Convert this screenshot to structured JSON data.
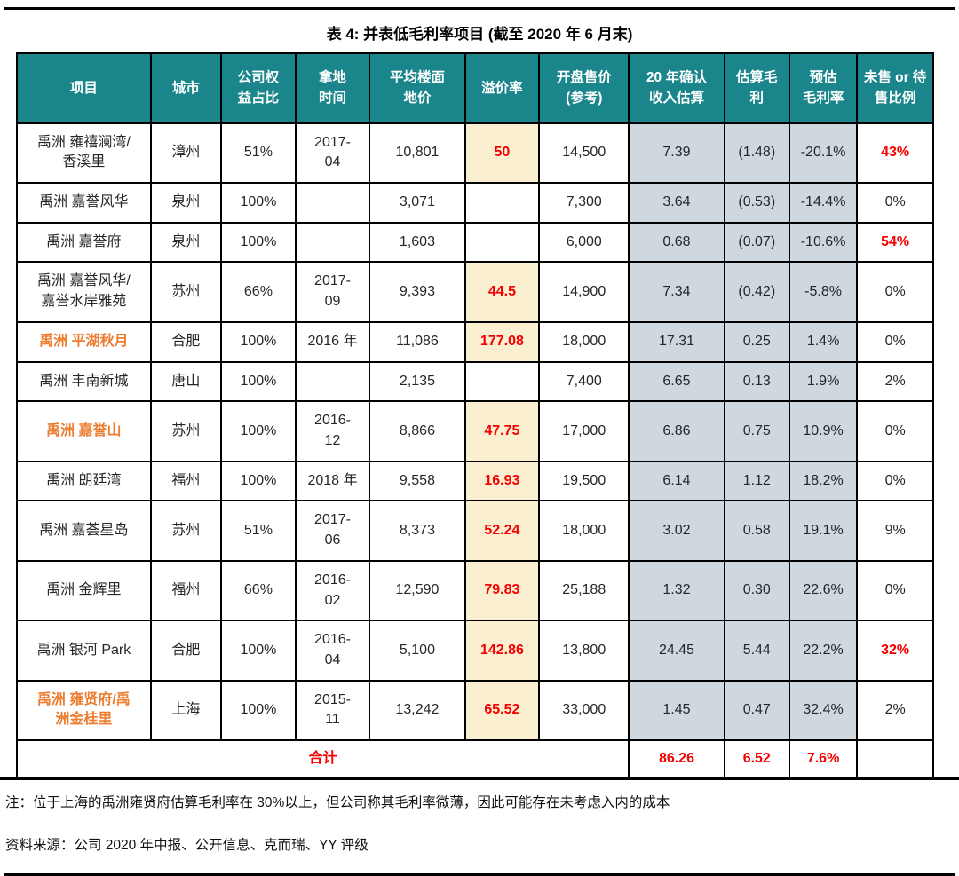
{
  "page": {
    "title": "表 4: 并表低毛利率项目 (截至 2020 年 6 月末)",
    "note": "注：位于上海的禹洲雍贤府估算毛利率在 30%以上，但公司称其毛利率微薄，因此可能存在未考虑入内的成本",
    "source": "资料来源：公司 2020 年中报、公开信息、克而瑞、YY 评级"
  },
  "colors": {
    "header_bg": "#1A868C",
    "header_text": "#FFFFFF",
    "premium_col_bg": "#FBEFD2",
    "estimate_cols_bg": "#CFD7DF",
    "highlight_red": "#F40000",
    "highlight_orange": "#ED7D31",
    "border": "#000000"
  },
  "table": {
    "columns": [
      {
        "key": "project",
        "label": "项目"
      },
      {
        "key": "city",
        "label": "城市"
      },
      {
        "key": "equity",
        "label": "公司权\n益占比"
      },
      {
        "key": "land_date",
        "label": "拿地\n时间"
      },
      {
        "key": "floor_price",
        "label": "平均楼面\n地价"
      },
      {
        "key": "premium",
        "label": "溢价率"
      },
      {
        "key": "open_price",
        "label": "开盘售价\n(参考)"
      },
      {
        "key": "revenue",
        "label": "20 年确认\n收入估算"
      },
      {
        "key": "gross_profit",
        "label": "估算毛\n利"
      },
      {
        "key": "gross_margin",
        "label": "预估\n毛利率"
      },
      {
        "key": "unsold",
        "label": "未售 or 待\n售比例"
      }
    ],
    "rows": [
      {
        "project": "禹洲 雍禧澜湾/\n香溪里",
        "city": "漳州",
        "equity": "51%",
        "land_date": "2017-\n04",
        "floor_price": "10,801",
        "premium": "50",
        "open_price": "14,500",
        "revenue": "7.39",
        "gross_profit": "(1.48)",
        "gross_margin": "-20.1%",
        "unsold": "43%",
        "project_orange": false,
        "unsold_red": true
      },
      {
        "project": "禹洲 嘉誉风华",
        "city": "泉州",
        "equity": "100%",
        "land_date": "",
        "floor_price": "3,071",
        "premium": "",
        "open_price": "7,300",
        "revenue": "3.64",
        "gross_profit": "(0.53)",
        "gross_margin": "-14.4%",
        "unsold": "0%",
        "project_orange": false,
        "unsold_red": false
      },
      {
        "project": "禹洲 嘉誉府",
        "city": "泉州",
        "equity": "100%",
        "land_date": "",
        "floor_price": "1,603",
        "premium": "",
        "open_price": "6,000",
        "revenue": "0.68",
        "gross_profit": "(0.07)",
        "gross_margin": "-10.6%",
        "unsold": "54%",
        "project_orange": false,
        "unsold_red": true
      },
      {
        "project": "禹洲 嘉誉风华/\n嘉誉水岸雅苑",
        "city": "苏州",
        "equity": "66%",
        "land_date": "2017-\n09",
        "floor_price": "9,393",
        "premium": "44.5",
        "open_price": "14,900",
        "revenue": "7.34",
        "gross_profit": "(0.42)",
        "gross_margin": "-5.8%",
        "unsold": "0%",
        "project_orange": false,
        "unsold_red": false
      },
      {
        "project": "禹洲 平湖秋月",
        "city": "合肥",
        "equity": "100%",
        "land_date": "2016 年",
        "floor_price": "11,086",
        "premium": "177.08",
        "open_price": "18,000",
        "revenue": "17.31",
        "gross_profit": "0.25",
        "gross_margin": "1.4%",
        "unsold": "0%",
        "project_orange": true,
        "unsold_red": false
      },
      {
        "project": "禹洲 丰南新城",
        "city": "唐山",
        "equity": "100%",
        "land_date": "",
        "floor_price": "2,135",
        "premium": "",
        "open_price": "7,400",
        "revenue": "6.65",
        "gross_profit": "0.13",
        "gross_margin": "1.9%",
        "unsold": "2%",
        "project_orange": false,
        "unsold_red": false
      },
      {
        "project": "禹洲 嘉誉山",
        "city": "苏州",
        "equity": "100%",
        "land_date": "2016-\n12",
        "floor_price": "8,866",
        "premium": "47.75",
        "open_price": "17,000",
        "revenue": "6.86",
        "gross_profit": "0.75",
        "gross_margin": "10.9%",
        "unsold": "0%",
        "project_orange": true,
        "unsold_red": false
      },
      {
        "project": "禹洲 朗廷湾",
        "city": "福州",
        "equity": "100%",
        "land_date": "2018 年",
        "floor_price": "9,558",
        "premium": "16.93",
        "open_price": "19,500",
        "revenue": "6.14",
        "gross_profit": "1.12",
        "gross_margin": "18.2%",
        "unsold": "0%",
        "project_orange": false,
        "unsold_red": false
      },
      {
        "project": "禹洲 嘉荟星岛",
        "city": "苏州",
        "equity": "51%",
        "land_date": "2017-\n06",
        "floor_price": "8,373",
        "premium": "52.24",
        "open_price": "18,000",
        "revenue": "3.02",
        "gross_profit": "0.58",
        "gross_margin": "19.1%",
        "unsold": "9%",
        "project_orange": false,
        "unsold_red": false
      },
      {
        "project": "禹洲 金辉里",
        "city": "福州",
        "equity": "66%",
        "land_date": "2016-\n02",
        "floor_price": "12,590",
        "premium": "79.83",
        "open_price": "25,188",
        "revenue": "1.32",
        "gross_profit": "0.30",
        "gross_margin": "22.6%",
        "unsold": "0%",
        "project_orange": false,
        "unsold_red": false
      },
      {
        "project": "禹洲 银河 Park",
        "city": "合肥",
        "equity": "100%",
        "land_date": "2016-\n04",
        "floor_price": "5,100",
        "premium": "142.86",
        "open_price": "13,800",
        "revenue": "24.45",
        "gross_profit": "5.44",
        "gross_margin": "22.2%",
        "unsold": "32%",
        "project_orange": false,
        "unsold_red": true
      },
      {
        "project": "禹洲 雍贤府/禹\n洲金桂里",
        "city": "上海",
        "equity": "100%",
        "land_date": "2015-\n11",
        "floor_price": "13,242",
        "premium": "65.52",
        "open_price": "33,000",
        "revenue": "1.45",
        "gross_profit": "0.47",
        "gross_margin": "32.4%",
        "unsold": "2%",
        "project_orange": true,
        "unsold_red": false
      }
    ],
    "total": {
      "label": "合计",
      "revenue": "86.26",
      "gross_profit": "6.52",
      "gross_margin": "7.6%",
      "unsold": ""
    }
  }
}
